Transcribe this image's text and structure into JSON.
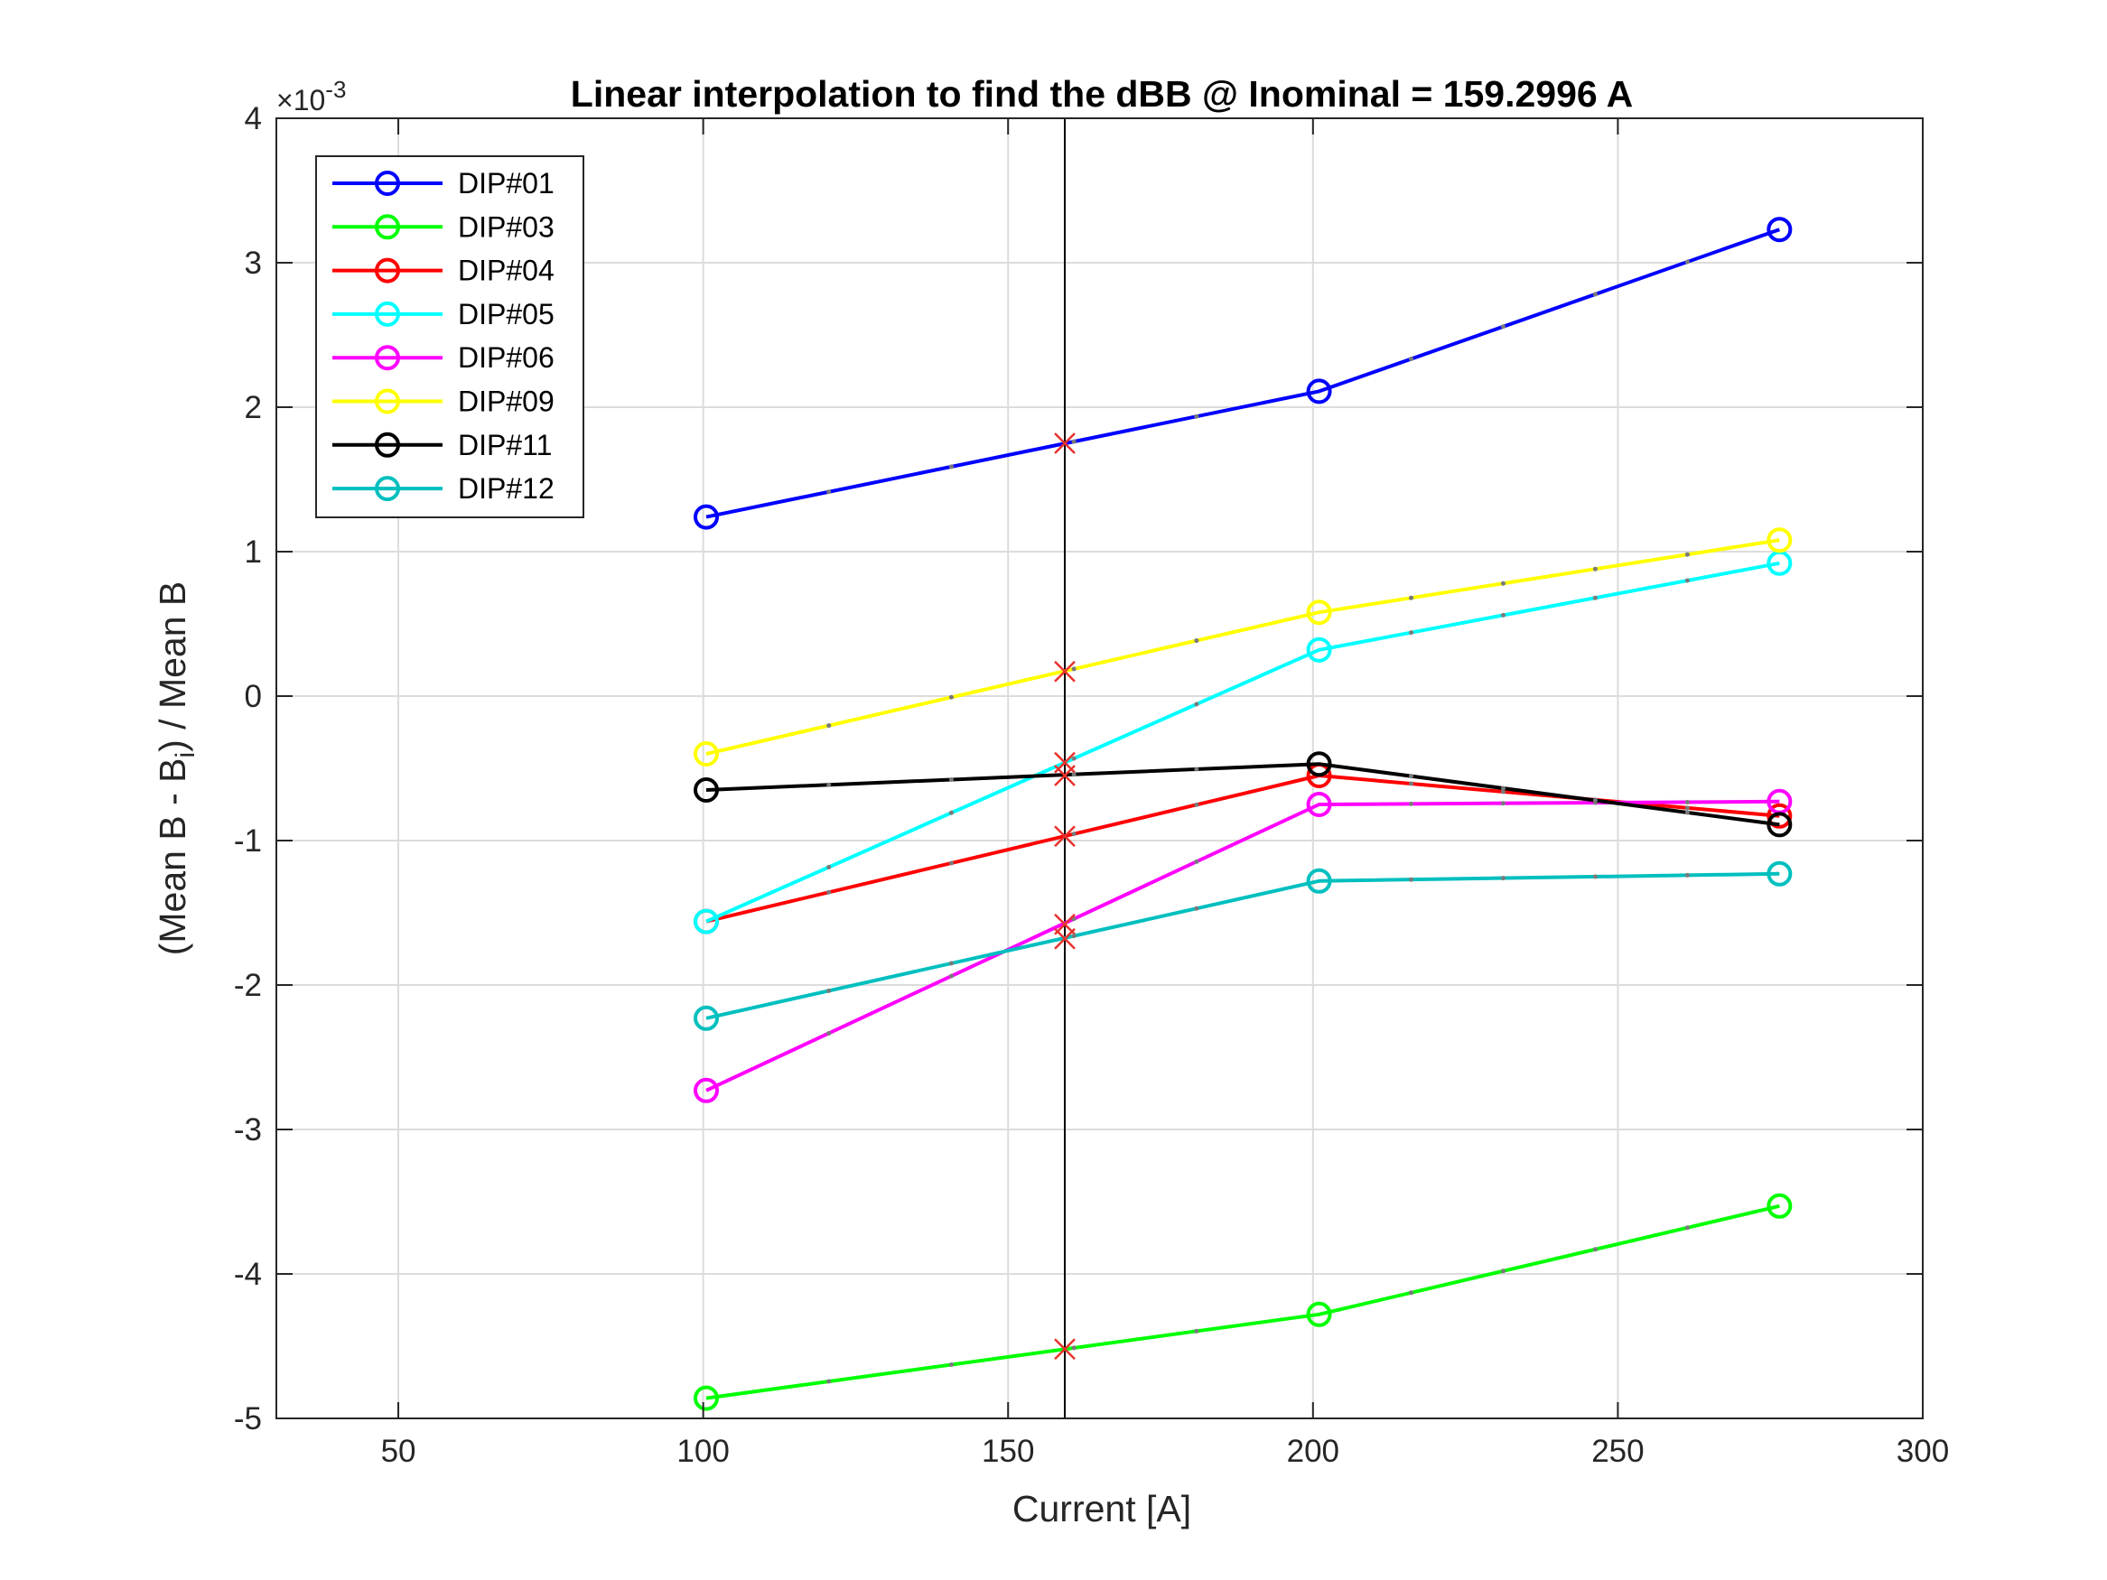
{
  "chart_data": {
    "type": "line",
    "title": "Linear interpolation to find the dBB @ Inominal = 159.2996 A",
    "xlabel": "Current [A]",
    "ylabel_parts": {
      "pre": "(Mean B - B",
      "sub": "i",
      "post": ") / Mean B"
    },
    "y_multiplier": {
      "base": "×10",
      "exponent": "-3"
    },
    "xlim": [
      30,
      300
    ],
    "ylim": [
      -5,
      4
    ],
    "xticks": [
      50,
      100,
      150,
      200,
      250,
      300
    ],
    "yticks": [
      -5,
      -4,
      -3,
      -2,
      -1,
      0,
      1,
      2,
      3,
      4
    ],
    "grid": true,
    "legend_position": "top-left",
    "x": [
      100.5,
      201,
      276.5
    ],
    "reference_line_x": 159.2996,
    "interp_marker_color": "#e8322d",
    "series": [
      {
        "name": "DIP#01",
        "color": "#0000ff",
        "values": [
          1.24,
          2.11,
          3.23
        ],
        "interp": 1.75
      },
      {
        "name": "DIP#03",
        "color": "#00ff00",
        "values": [
          -4.86,
          -4.28,
          -3.53
        ],
        "interp": -4.52
      },
      {
        "name": "DIP#04",
        "color": "#ff0000",
        "values": [
          -1.56,
          -0.55,
          -0.83
        ],
        "interp": -0.97
      },
      {
        "name": "DIP#05",
        "color": "#00ffff",
        "values": [
          -1.56,
          0.32,
          0.92
        ],
        "interp": -0.46
      },
      {
        "name": "DIP#06",
        "color": "#ff00ff",
        "values": [
          -2.73,
          -0.75,
          -0.73
        ],
        "interp": -1.58
      },
      {
        "name": "DIP#09",
        "color": "#ffff00",
        "values": [
          -0.4,
          0.58,
          1.08
        ],
        "interp": 0.17
      },
      {
        "name": "DIP#11",
        "color": "#000000",
        "values": [
          -0.65,
          -0.47,
          -0.89
        ],
        "interp": -0.55
      },
      {
        "name": "DIP#12",
        "color": "#00bfbf",
        "values": [
          -2.23,
          -1.28,
          -1.23
        ],
        "interp": -1.68
      }
    ]
  }
}
